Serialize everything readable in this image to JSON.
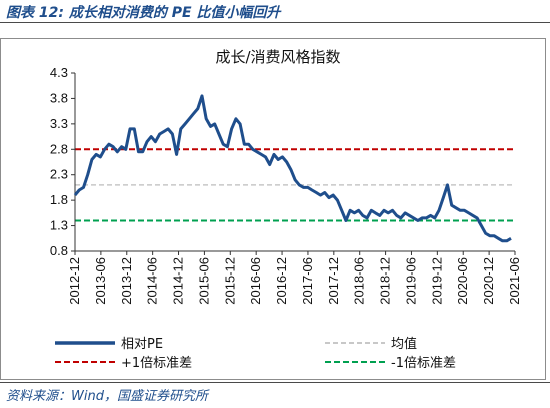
{
  "figure_title": "图表 12: 成长相对消费的 PE 比值小幅回升",
  "source": "资料来源：Wind，国盛证券研究所",
  "colors": {
    "series_main": "#1f4e8c",
    "mean_line": "#c8c8c8",
    "plus1_line": "#c00000",
    "minus1_line": "#00a050",
    "title_blue": "#1f4e8c"
  },
  "chart_data": {
    "type": "line",
    "title": "成长/消费风格指数",
    "xlabel": "",
    "ylabel": "",
    "ylim": [
      0.8,
      4.3
    ],
    "yticks": [
      "4.3",
      "3.8",
      "3.3",
      "2.8",
      "2.3",
      "1.8",
      "1.3",
      "0.8"
    ],
    "xticks": [
      "2012-12",
      "2013-06",
      "2013-12",
      "2014-06",
      "2014-12",
      "2015-06",
      "2015-12",
      "2016-06",
      "2016-12",
      "2017-06",
      "2017-12",
      "2018-06",
      "2018-12",
      "2019-06",
      "2019-12",
      "2020-06",
      "2020-12",
      "2021-06"
    ],
    "grid": false,
    "legend_position": "bottom",
    "series": [
      {
        "name": "相对PE",
        "values": [
          1.9,
          2.0,
          2.05,
          2.3,
          2.6,
          2.7,
          2.65,
          2.8,
          2.9,
          2.85,
          2.75,
          2.85,
          2.8,
          3.2,
          3.2,
          2.75,
          2.75,
          2.95,
          3.05,
          2.95,
          3.1,
          3.15,
          3.2,
          3.1,
          2.7,
          3.2,
          3.3,
          3.4,
          3.5,
          3.6,
          3.85,
          3.4,
          3.25,
          3.3,
          3.1,
          2.9,
          2.85,
          3.2,
          3.4,
          3.3,
          2.9,
          2.9,
          2.8,
          2.75,
          2.7,
          2.65,
          2.5,
          2.7,
          2.6,
          2.65,
          2.55,
          2.4,
          2.2,
          2.1,
          2.05,
          2.05,
          2.0,
          1.95,
          1.9,
          1.95,
          1.85,
          1.9,
          1.8,
          1.6,
          1.4,
          1.6,
          1.55,
          1.6,
          1.5,
          1.45,
          1.6,
          1.55,
          1.5,
          1.6,
          1.55,
          1.6,
          1.5,
          1.45,
          1.55,
          1.5,
          1.45,
          1.4,
          1.45,
          1.45,
          1.5,
          1.45,
          1.6,
          1.85,
          2.1,
          1.7,
          1.65,
          1.6,
          1.6,
          1.55,
          1.5,
          1.45,
          1.3,
          1.15,
          1.1,
          1.1,
          1.05,
          1.0,
          1.0,
          1.05
        ]
      },
      {
        "name": "均值",
        "values": [
          2.1
        ]
      },
      {
        "name": "+1倍标准差",
        "values": [
          2.8
        ]
      },
      {
        "name": "-1倍标准差",
        "values": [
          1.4
        ]
      }
    ]
  }
}
